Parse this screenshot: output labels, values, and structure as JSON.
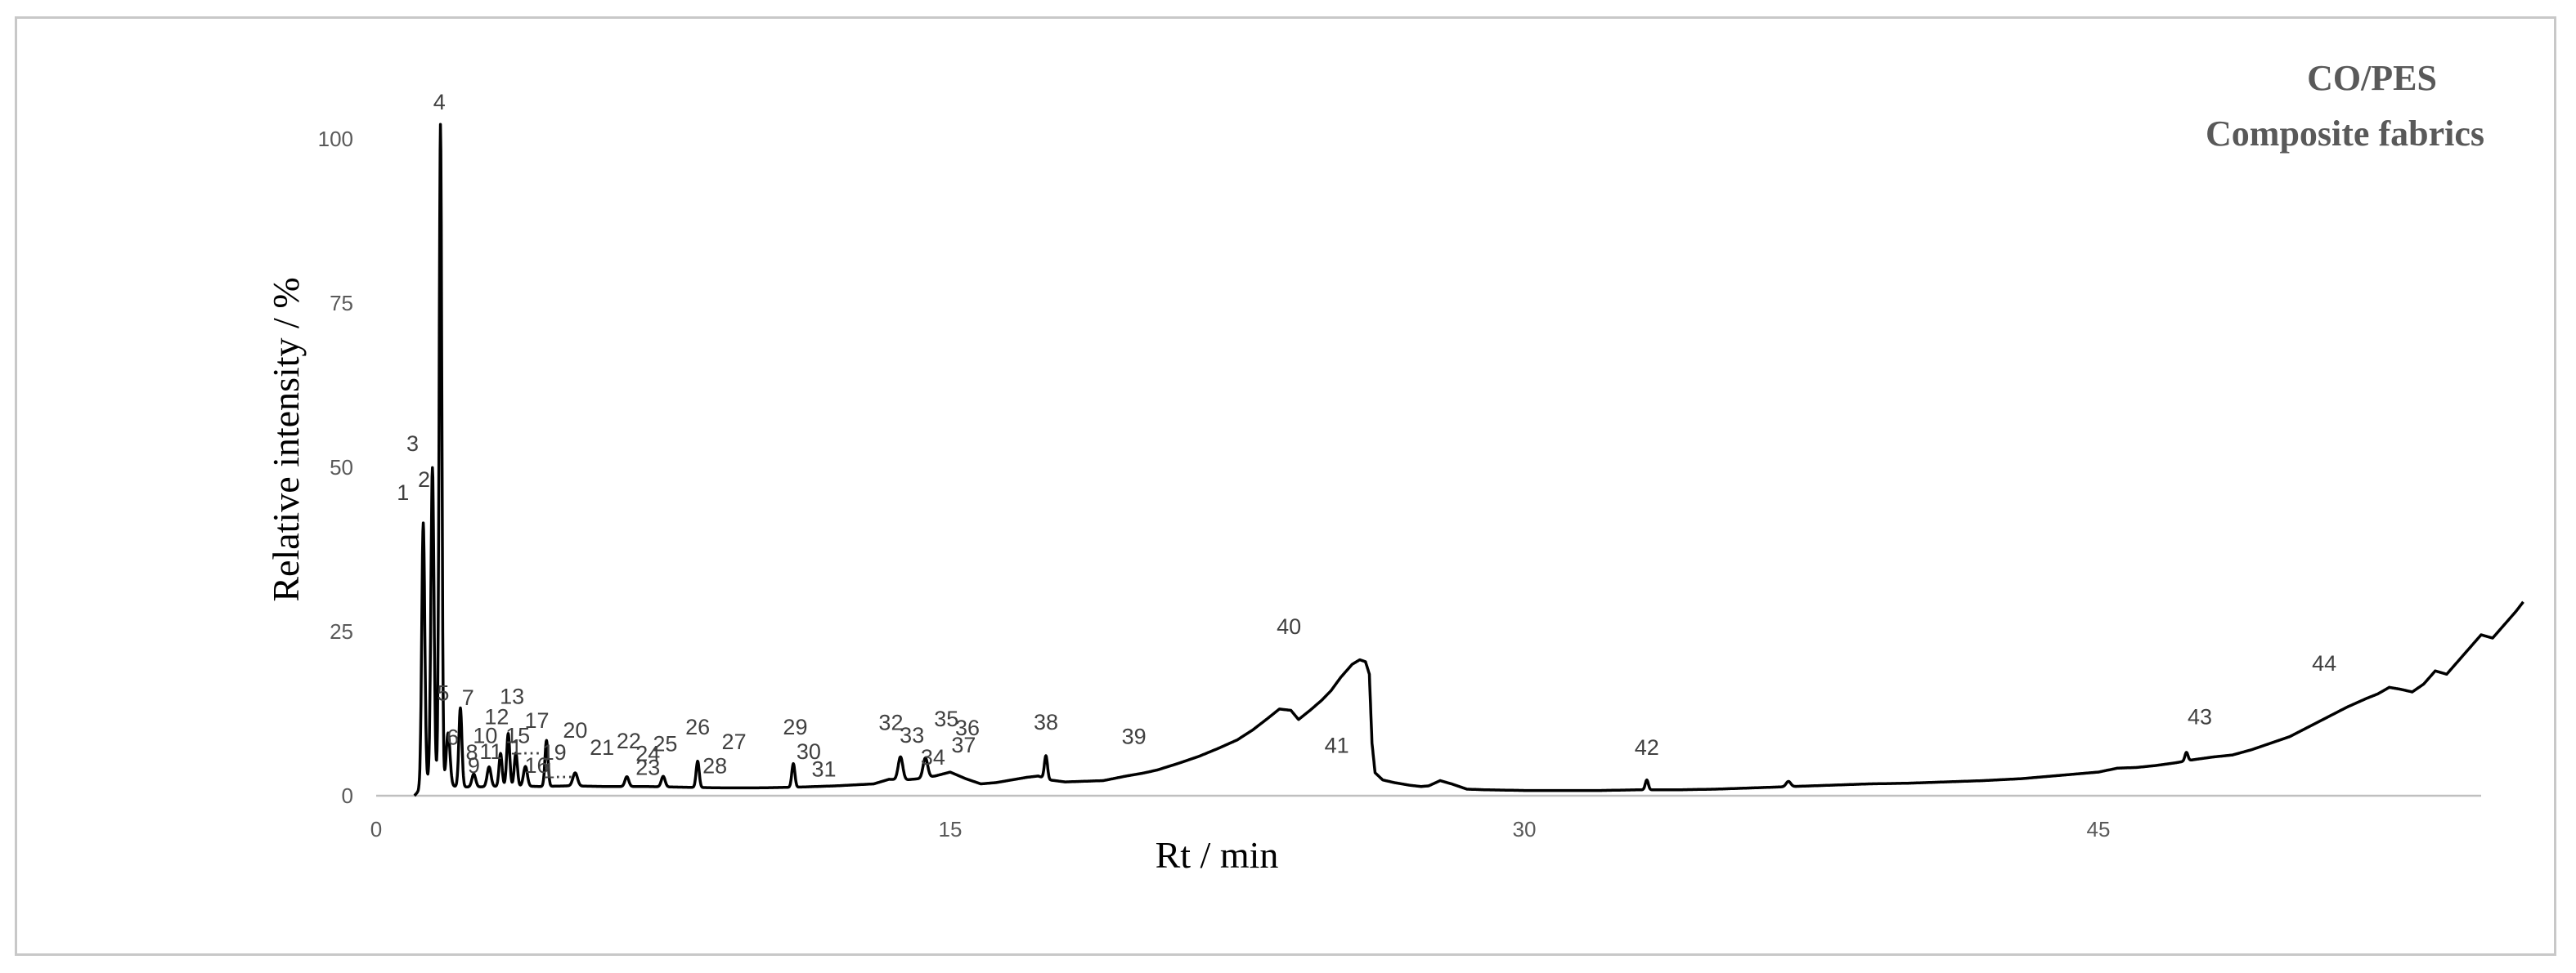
{
  "chart_data": {
    "type": "line",
    "title": [
      "CO/PES",
      "Composite fabrics"
    ],
    "xlabel": "Rt / min",
    "ylabel": "Relative intensity / %",
    "xlim": [
      0,
      55
    ],
    "ylim": [
      0,
      100
    ],
    "xticks": [
      0,
      15,
      30,
      45
    ],
    "yticks": [
      0,
      25,
      50,
      75,
      100
    ],
    "grid": false,
    "legend": "none",
    "line_color": "#000000",
    "series": [
      {
        "baseline": [
          [
            1.0,
            0
          ],
          [
            1.15,
            1
          ],
          [
            1.3,
            2
          ],
          [
            1.45,
            3
          ],
          [
            1.6,
            2.6
          ],
          [
            1.8,
            1.6
          ],
          [
            2.1,
            1.4
          ],
          [
            2.5,
            1.3
          ],
          [
            3.0,
            1.4
          ],
          [
            3.6,
            1.5
          ],
          [
            4.3,
            1.4
          ],
          [
            5.0,
            1.5
          ],
          [
            6.0,
            1.4
          ],
          [
            7.0,
            1.4
          ],
          [
            8.0,
            1.3
          ],
          [
            9.0,
            1.2
          ],
          [
            10.0,
            1.2
          ],
          [
            11.0,
            1.3
          ],
          [
            12.0,
            1.5
          ],
          [
            13.0,
            1.8
          ],
          [
            13.4,
            2.5
          ],
          [
            13.8,
            2.4
          ],
          [
            14.2,
            2.6
          ],
          [
            14.6,
            3.0
          ],
          [
            15.0,
            3.6
          ],
          [
            15.4,
            2.6
          ],
          [
            15.8,
            1.8
          ],
          [
            16.2,
            2.0
          ],
          [
            16.6,
            2.4
          ],
          [
            17.0,
            2.8
          ],
          [
            17.3,
            3.0
          ],
          [
            17.6,
            2.4
          ],
          [
            18.0,
            2.1
          ],
          [
            19.0,
            2.3
          ],
          [
            19.6,
            3.0
          ],
          [
            20.0,
            3.4
          ],
          [
            20.4,
            3.9
          ],
          [
            21.0,
            5.0
          ],
          [
            21.5,
            6.0
          ],
          [
            22.0,
            7.2
          ],
          [
            22.5,
            8.5
          ],
          [
            22.9,
            10.0
          ],
          [
            23.3,
            11.8
          ],
          [
            23.6,
            13.2
          ],
          [
            23.9,
            13.0
          ],
          [
            24.1,
            11.6
          ],
          [
            24.4,
            13.0
          ],
          [
            24.7,
            14.5
          ],
          [
            24.95,
            16.0
          ],
          [
            25.2,
            18.0
          ],
          [
            25.5,
            20.0
          ],
          [
            25.7,
            20.7
          ],
          [
            25.85,
            20.4
          ],
          [
            25.95,
            18.5
          ],
          [
            26.02,
            8.0
          ],
          [
            26.1,
            3.5
          ],
          [
            26.3,
            2.4
          ],
          [
            26.6,
            2.0
          ],
          [
            27.0,
            1.6
          ],
          [
            27.3,
            1.4
          ],
          [
            27.5,
            1.5
          ],
          [
            27.8,
            2.3
          ],
          [
            28.1,
            1.8
          ],
          [
            28.5,
            1.0
          ],
          [
            29.0,
            0.9
          ],
          [
            30.0,
            0.8
          ],
          [
            31.0,
            0.8
          ],
          [
            32.0,
            0.8
          ],
          [
            33.0,
            0.9
          ],
          [
            34.0,
            0.9
          ],
          [
            35.0,
            1.0
          ],
          [
            36.0,
            1.2
          ],
          [
            37.0,
            1.4
          ],
          [
            38.0,
            1.6
          ],
          [
            39.0,
            1.8
          ],
          [
            40.0,
            1.9
          ],
          [
            41.0,
            2.1
          ],
          [
            42.0,
            2.3
          ],
          [
            43.0,
            2.6
          ],
          [
            44.0,
            3.1
          ],
          [
            45.0,
            3.6
          ],
          [
            45.5,
            4.2
          ],
          [
            46.0,
            4.3
          ],
          [
            46.5,
            4.6
          ],
          [
            47.0,
            5.0
          ],
          [
            47.5,
            5.5
          ],
          [
            48.0,
            5.9
          ],
          [
            48.5,
            6.2
          ],
          [
            49.0,
            7.0
          ],
          [
            49.5,
            8.0
          ],
          [
            50.0,
            9.0
          ],
          [
            50.5,
            10.5
          ],
          [
            51.0,
            12.0
          ],
          [
            51.5,
            13.5
          ],
          [
            52.0,
            14.8
          ],
          [
            52.3,
            15.5
          ],
          [
            52.6,
            16.5
          ],
          [
            52.9,
            16.2
          ],
          [
            53.2,
            15.8
          ],
          [
            53.5,
            17.0
          ],
          [
            53.8,
            19.0
          ],
          [
            54.1,
            18.5
          ],
          [
            54.4,
            20.5
          ],
          [
            54.7,
            22.5
          ],
          [
            55.0,
            24.5
          ],
          [
            55.3,
            24.0
          ],
          [
            55.6,
            26.0
          ],
          [
            55.9,
            28.0
          ],
          [
            56.1,
            29.5
          ]
        ],
        "peaks": [
          {
            "x": 1.23,
            "y": 40,
            "w": 0.04
          },
          {
            "x": 1.47,
            "y": 47,
            "w": 0.04
          },
          {
            "x": 1.68,
            "y": 100,
            "w": 0.035
          },
          {
            "x": 1.88,
            "y": 8,
            "w": 0.05
          },
          {
            "x": 2.2,
            "y": 12,
            "w": 0.04
          },
          {
            "x": 2.55,
            "y": 2,
            "w": 0.05
          },
          {
            "x": 2.95,
            "y": 3,
            "w": 0.05
          },
          {
            "x": 3.25,
            "y": 5,
            "w": 0.04
          },
          {
            "x": 3.45,
            "y": 8,
            "w": 0.04
          },
          {
            "x": 3.65,
            "y": 5,
            "w": 0.04
          },
          {
            "x": 3.9,
            "y": 3,
            "w": 0.05
          },
          {
            "x": 4.45,
            "y": 7,
            "w": 0.04
          },
          {
            "x": 5.2,
            "y": 2,
            "w": 0.06
          },
          {
            "x": 6.55,
            "y": 1.5,
            "w": 0.05
          },
          {
            "x": 7.5,
            "y": 1.6,
            "w": 0.05
          },
          {
            "x": 8.4,
            "y": 4,
            "w": 0.04
          },
          {
            "x": 10.9,
            "y": 3.6,
            "w": 0.04
          },
          {
            "x": 13.7,
            "y": 3.5,
            "w": 0.06
          },
          {
            "x": 14.35,
            "y": 3,
            "w": 0.06
          },
          {
            "x": 17.5,
            "y": 3.5,
            "w": 0.04
          },
          {
            "x": 33.2,
            "y": 1.5,
            "w": 0.04
          },
          {
            "x": 36.9,
            "y": 0.8,
            "w": 0.06
          },
          {
            "x": 47.3,
            "y": 1.3,
            "w": 0.04
          }
        ]
      }
    ],
    "peak_labels": [
      {
        "text": "1",
        "x": 0.7,
        "y": 45
      },
      {
        "text": "2",
        "x": 1.25,
        "y": 47
      },
      {
        "text": "3",
        "x": 0.95,
        "y": 52.5
      },
      {
        "text": "4",
        "x": 1.65,
        "y": 104.5
      },
      {
        "text": "5",
        "x": 1.75,
        "y": 14.5
      },
      {
        "text": "6",
        "x": 2.0,
        "y": 7.8
      },
      {
        "text": "7",
        "x": 2.4,
        "y": 13.8
      },
      {
        "text": "8",
        "x": 2.5,
        "y": 5.5
      },
      {
        "text": "9",
        "x": 2.55,
        "y": 3.5
      },
      {
        "text": "10",
        "x": 2.85,
        "y": 8
      },
      {
        "text": "11",
        "x": 3.0,
        "y": 5.6
      },
      {
        "text": "12",
        "x": 3.15,
        "y": 10.9
      },
      {
        "text": "13",
        "x": 3.55,
        "y": 14
      },
      {
        "text": "15",
        "x": 3.7,
        "y": 8
      },
      {
        "text": "1...",
        "x": 3.9,
        "y": 6.3
      },
      {
        "text": "16",
        "x": 4.2,
        "y": 3.5
      },
      {
        "text": "17",
        "x": 4.2,
        "y": 10.3
      },
      {
        "text": "19",
        "x": 4.65,
        "y": 5.5
      },
      {
        "text": "1...",
        "x": 4.75,
        "y": 2.7
      },
      {
        "text": "20",
        "x": 5.2,
        "y": 8.8
      },
      {
        "text": "21",
        "x": 5.9,
        "y": 6.2
      },
      {
        "text": "22",
        "x": 6.6,
        "y": 7.2
      },
      {
        "text": "23",
        "x": 7.1,
        "y": 3.2
      },
      {
        "text": "24",
        "x": 7.1,
        "y": 5.3
      },
      {
        "text": "25",
        "x": 7.55,
        "y": 6.8
      },
      {
        "text": "26",
        "x": 8.4,
        "y": 9.3
      },
      {
        "text": "27",
        "x": 9.35,
        "y": 7.1
      },
      {
        "text": "28",
        "x": 8.85,
        "y": 3.4
      },
      {
        "text": "29",
        "x": 10.95,
        "y": 9.3
      },
      {
        "text": "30",
        "x": 11.3,
        "y": 5.6
      },
      {
        "text": "31",
        "x": 11.7,
        "y": 2.9
      },
      {
        "text": "32",
        "x": 13.45,
        "y": 10
      },
      {
        "text": "33",
        "x": 14.0,
        "y": 8.1
      },
      {
        "text": "34",
        "x": 14.55,
        "y": 4.7
      },
      {
        "text": "35",
        "x": 14.9,
        "y": 10.6
      },
      {
        "text": "36",
        "x": 15.45,
        "y": 9.2
      },
      {
        "text": "37",
        "x": 15.35,
        "y": 6.6
      },
      {
        "text": "38",
        "x": 17.5,
        "y": 10.1
      },
      {
        "text": "39",
        "x": 19.8,
        "y": 7.9
      },
      {
        "text": "40",
        "x": 23.85,
        "y": 24.6
      },
      {
        "text": "41",
        "x": 25.1,
        "y": 6.5
      },
      {
        "text": "42",
        "x": 33.2,
        "y": 6.2
      },
      {
        "text": "43",
        "x": 47.65,
        "y": 10.9
      },
      {
        "text": "44",
        "x": 50.9,
        "y": 19
      }
    ]
  }
}
